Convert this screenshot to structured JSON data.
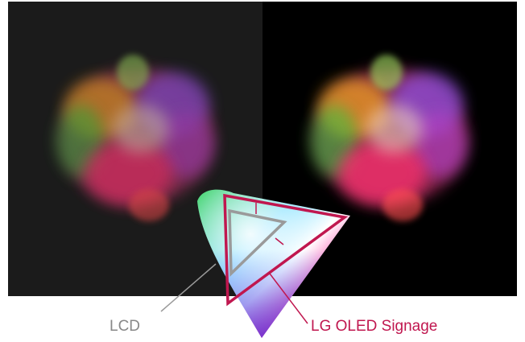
{
  "labels": {
    "lcd": "LCD",
    "oled": "LG OLED Signage"
  }
}
